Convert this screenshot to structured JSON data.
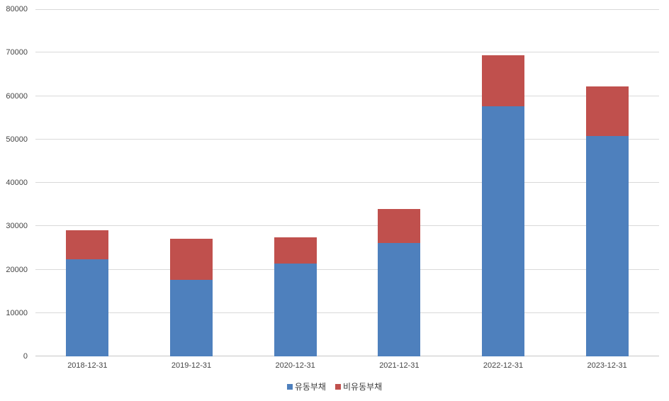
{
  "chart_data": {
    "type": "bar",
    "stacked": true,
    "title": "",
    "xlabel": "",
    "ylabel": "",
    "categories": [
      "2018-12-31",
      "2019-12-31",
      "2020-12-31",
      "2021-12-31",
      "2022-12-31",
      "2023-12-31"
    ],
    "series": [
      {
        "name": "유동부채",
        "color": "#4e80bd",
        "values": [
          22400,
          17700,
          21400,
          26100,
          57700,
          50800
        ]
      },
      {
        "name": "비유동부채",
        "color": "#c0504d",
        "values": [
          6700,
          9500,
          6100,
          7900,
          11700,
          11400
        ]
      }
    ],
    "stack_totals": [
      29100,
      27200,
      27500,
      34000,
      69400,
      62200
    ],
    "ylim": [
      0,
      80000
    ],
    "ytick_interval": 10000,
    "ytick_labels": [
      "0",
      "10000",
      "20000",
      "30000",
      "40000",
      "50000",
      "60000",
      "70000",
      "80000"
    ],
    "grid": true,
    "legend_position": "bottom",
    "colors": {
      "gridline": "#d9d9d9",
      "axis_line": "#c6c6c6",
      "tick_text": "#444444",
      "legend_text": "#3c3c3c",
      "background": "#ffffff"
    }
  }
}
